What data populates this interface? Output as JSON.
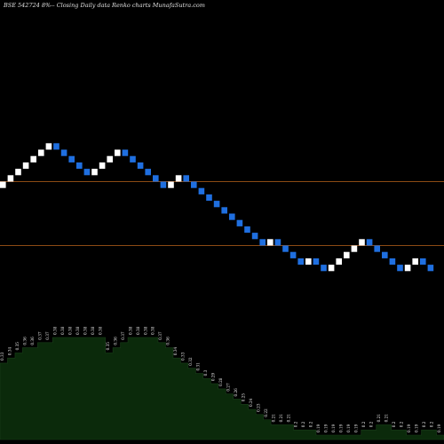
{
  "header": {
    "title": "BSE 542724  8%--  Closing Daily data  Renko  charts MunafaSutra.com"
  },
  "chart_data": {
    "type": "renko",
    "title": "BSE 542724  8%--  Closing Daily data  Renko  charts MunafaSutra.com",
    "up_color": "#ffffff",
    "down_color": "#1f6fe0",
    "reference_line_color": "#8b4a14",
    "reference_lines": [
      0.31,
      0.26
    ],
    "bricks": [
      {
        "dir": "up",
        "close": 0.31
      },
      {
        "dir": "up",
        "close": 0.315
      },
      {
        "dir": "up",
        "close": 0.32
      },
      {
        "dir": "up",
        "close": 0.325
      },
      {
        "dir": "up",
        "close": 0.33
      },
      {
        "dir": "up",
        "close": 0.335
      },
      {
        "dir": "up",
        "close": 0.34
      },
      {
        "dir": "down",
        "close": 0.335
      },
      {
        "dir": "down",
        "close": 0.33
      },
      {
        "dir": "down",
        "close": 0.325
      },
      {
        "dir": "down",
        "close": 0.32
      },
      {
        "dir": "down",
        "close": 0.315
      },
      {
        "dir": "up",
        "close": 0.32
      },
      {
        "dir": "up",
        "close": 0.325
      },
      {
        "dir": "up",
        "close": 0.33
      },
      {
        "dir": "up",
        "close": 0.335
      },
      {
        "dir": "down",
        "close": 0.33
      },
      {
        "dir": "down",
        "close": 0.325
      },
      {
        "dir": "down",
        "close": 0.32
      },
      {
        "dir": "down",
        "close": 0.315
      },
      {
        "dir": "down",
        "close": 0.31
      },
      {
        "dir": "down",
        "close": 0.305
      },
      {
        "dir": "up",
        "close": 0.31
      },
      {
        "dir": "up",
        "close": 0.315
      },
      {
        "dir": "down",
        "close": 0.31
      },
      {
        "dir": "down",
        "close": 0.305
      },
      {
        "dir": "down",
        "close": 0.3
      },
      {
        "dir": "down",
        "close": 0.295
      },
      {
        "dir": "down",
        "close": 0.29
      },
      {
        "dir": "down",
        "close": 0.285
      },
      {
        "dir": "down",
        "close": 0.28
      },
      {
        "dir": "down",
        "close": 0.275
      },
      {
        "dir": "down",
        "close": 0.27
      },
      {
        "dir": "down",
        "close": 0.265
      },
      {
        "dir": "down",
        "close": 0.26
      },
      {
        "dir": "up",
        "close": 0.265
      },
      {
        "dir": "down",
        "close": 0.26
      },
      {
        "dir": "down",
        "close": 0.255
      },
      {
        "dir": "down",
        "close": 0.25
      },
      {
        "dir": "down",
        "close": 0.245
      },
      {
        "dir": "up",
        "close": 0.25
      },
      {
        "dir": "down",
        "close": 0.245
      },
      {
        "dir": "down",
        "close": 0.24
      },
      {
        "dir": "up",
        "close": 0.245
      },
      {
        "dir": "up",
        "close": 0.25
      },
      {
        "dir": "up",
        "close": 0.255
      },
      {
        "dir": "up",
        "close": 0.26
      },
      {
        "dir": "up",
        "close": 0.265
      },
      {
        "dir": "down",
        "close": 0.26
      },
      {
        "dir": "down",
        "close": 0.255
      },
      {
        "dir": "down",
        "close": 0.25
      },
      {
        "dir": "down",
        "close": 0.245
      },
      {
        "dir": "down",
        "close": 0.24
      },
      {
        "dir": "up",
        "close": 0.245
      },
      {
        "dir": "up",
        "close": 0.25
      },
      {
        "dir": "down",
        "close": 0.245
      },
      {
        "dir": "down",
        "close": 0.24
      }
    ],
    "lower_panel": {
      "fill_color": "#0b2a0b",
      "edge_color": "#1a3f1a",
      "values": [
        0.33,
        0.34,
        0.35,
        0.36,
        0.36,
        0.37,
        0.37,
        0.38,
        0.38,
        0.38,
        0.38,
        0.38,
        0.38,
        0.38,
        0.35,
        0.36,
        0.37,
        0.38,
        0.38,
        0.38,
        0.38,
        0.37,
        0.36,
        0.34,
        0.33,
        0.32,
        0.31,
        0.3,
        0.29,
        0.28,
        0.27,
        0.26,
        0.25,
        0.24,
        0.23,
        0.22,
        0.21,
        0.21,
        0.21,
        0.2,
        0.2,
        0.2,
        0.19,
        0.19,
        0.19,
        0.19,
        0.19,
        0.19,
        0.2,
        0.2,
        0.21,
        0.21,
        0.2,
        0.2,
        0.19,
        0.19,
        0.2,
        0.2,
        0.19
      ],
      "labels": [
        "0.33",
        "0.34",
        "0.35",
        "0.36",
        "0.36",
        "0.37",
        "0.37",
        "0.38",
        "0.38",
        "0.38",
        "0.38",
        "0.38",
        "0.38",
        "0.38",
        "0.35",
        "0.36",
        "0.37",
        "0.38",
        "0.38",
        "0.38",
        "0.38",
        "0.37",
        "0.36",
        "0.34",
        "0.33",
        "0.32",
        "0.31",
        "0.3",
        "0.29",
        "0.28",
        "0.27",
        "0.26",
        "0.25",
        "0.24",
        "0.23",
        "0.22",
        "0.21",
        "0.21",
        "0.21",
        "0.2",
        "0.2",
        "0.2",
        "0.19",
        "0.19",
        "0.19",
        "0.19",
        "0.19",
        "0.19",
        "0.2",
        "0.2",
        "0.21",
        "0.21",
        "0.2",
        "0.2",
        "0.19",
        "0.19",
        "0.2",
        "0.2",
        "0.19"
      ]
    }
  }
}
